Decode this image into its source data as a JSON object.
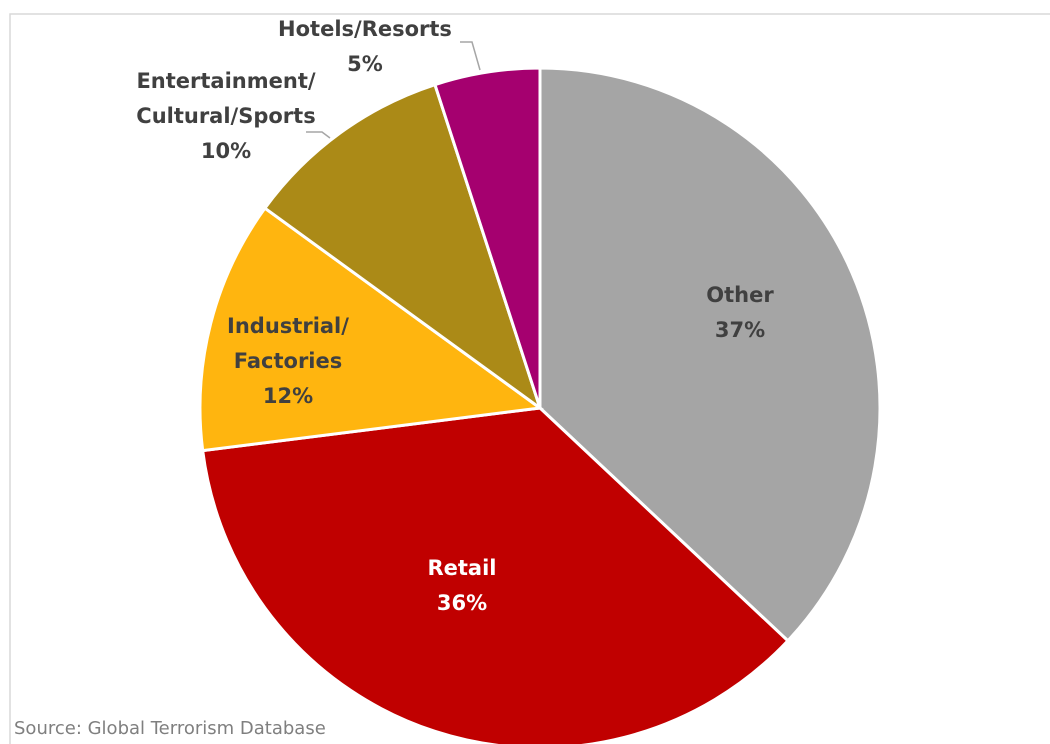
{
  "chart_data": {
    "type": "pie",
    "categories": [
      "Other",
      "Retail",
      "Industrial/ Factories",
      "Entertainment/ Cultural/Sports",
      "Hotels/Resorts"
    ],
    "values": [
      37,
      36,
      12,
      10,
      5
    ],
    "value_labels": [
      "37%",
      "36%",
      "12%",
      "10%",
      "5%"
    ],
    "colors": [
      "#a5a5a5",
      "#c00000",
      "#ffb50f",
      "#ab8a17",
      "#a5006f"
    ],
    "source": "Source: Global Terrorism Database"
  }
}
